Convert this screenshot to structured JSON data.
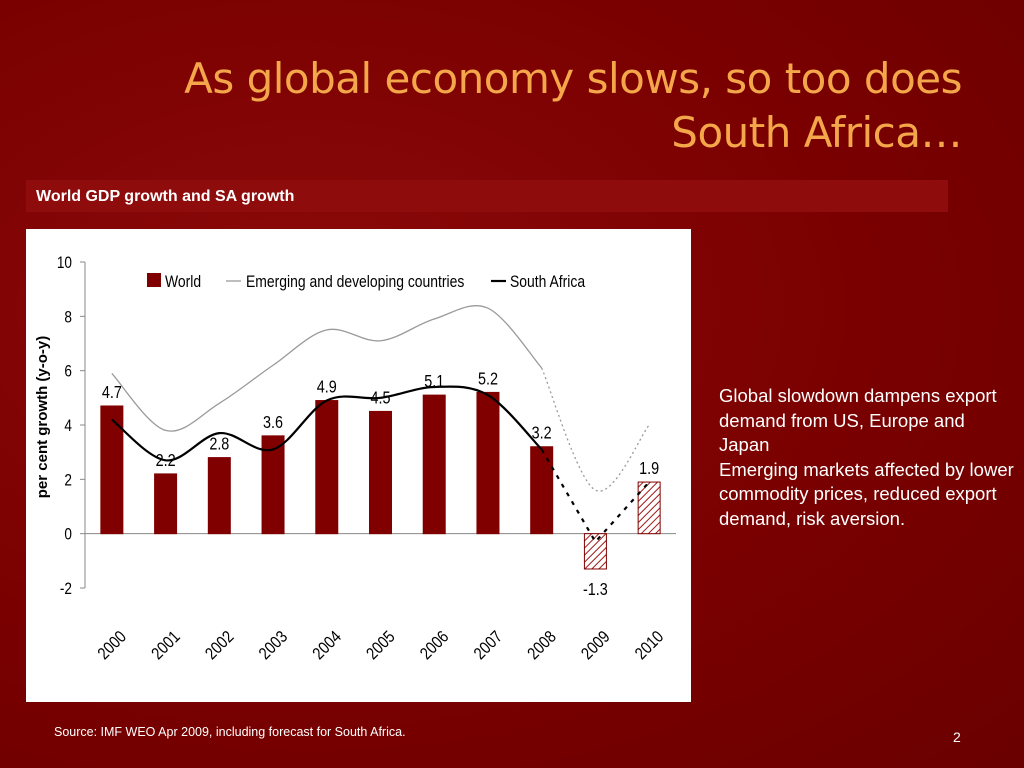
{
  "slide": {
    "title_line1": "As global economy slows, so too does",
    "title_line2": "South Africa…",
    "subtitle": "World GDP growth and SA growth",
    "bullets": [
      "Global slowdown dampens export demand from US, Europe and Japan",
      "Emerging markets affected by lower commodity prices, reduced export demand, risk aversion."
    ],
    "source": "Source: IMF WEO Apr 2009, including forecast for South Africa.",
    "page_number": "2"
  },
  "colors": {
    "world_bar": "#800000",
    "emerging_line": "#9a9a9a",
    "sa_line": "#000000",
    "title": "#f4a64a"
  },
  "chart_data": {
    "type": "bar",
    "ylabel": "per cent growth (y-o-y)",
    "ylim": [
      -2,
      10
    ],
    "yticks": [
      -2,
      0,
      2,
      4,
      6,
      8,
      10
    ],
    "categories": [
      "2000",
      "2001",
      "2002",
      "2003",
      "2004",
      "2005",
      "2006",
      "2007",
      "2008",
      "2009",
      "2010"
    ],
    "legend_position": "top",
    "grid": false,
    "forecast_start": "2009",
    "series": [
      {
        "name": "World",
        "kind": "bar",
        "values": [
          4.7,
          2.2,
          2.8,
          3.6,
          4.9,
          4.5,
          5.1,
          5.2,
          3.2,
          -1.3,
          1.9
        ],
        "labels": [
          "4.7",
          "2.2",
          "2.8",
          "3.6",
          "4.9",
          "4.5",
          "5.1",
          "5.2",
          "3.2",
          "-1.3",
          "1.9"
        ]
      },
      {
        "name": "Emerging and developing countries",
        "kind": "line",
        "values": [
          5.9,
          3.8,
          4.8,
          6.2,
          7.5,
          7.1,
          7.9,
          8.3,
          6.1,
          1.6,
          4.0
        ]
      },
      {
        "name": "South Africa",
        "kind": "line",
        "values": [
          4.2,
          2.7,
          3.7,
          3.1,
          4.9,
          5.0,
          5.4,
          5.1,
          3.1,
          -0.3,
          1.9
        ]
      }
    ]
  }
}
